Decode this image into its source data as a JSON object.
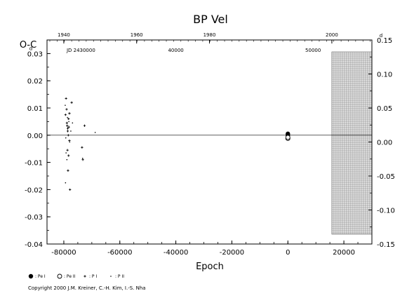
{
  "chart_data": {
    "type": "scatter",
    "title": "BP  Vel",
    "xlabel": "Epoch",
    "ylabel": "O-C",
    "xlim": [
      -86000,
      30000
    ],
    "ylim": [
      -0.04,
      0.035
    ],
    "right_ylim": [
      -0.15,
      0.15
    ],
    "x_ticks": [
      "-80000",
      "-60000",
      "-40000",
      "-20000",
      "0",
      "20000"
    ],
    "x_tick_values": [
      -80000,
      -60000,
      -40000,
      -20000,
      0,
      20000
    ],
    "y_ticks": [
      "-0.04",
      "-0.03",
      "-0.02",
      "-0.01",
      "0.00",
      "0.01",
      "0.02",
      "0.03"
    ],
    "y_tick_values": [
      -0.04,
      -0.03,
      -0.02,
      -0.01,
      0.0,
      0.01,
      0.02,
      0.03
    ],
    "right_ticks": [
      "-0.15",
      "-0.10",
      "-0.05",
      "0.00",
      "0.05",
      "0.10",
      "0.15"
    ],
    "right_tick_values": [
      -0.15,
      -0.1,
      -0.05,
      0.0,
      0.05,
      0.1,
      0.15
    ],
    "day_unit_label": "d",
    "top_year_ticks": [
      "1940",
      "1960",
      "1980",
      "2000"
    ],
    "top_year_epochs": [
      -80000,
      -54000,
      -28000,
      15700
    ],
    "top_jd_prefix": "JD 2430000",
    "top_jd_ticks": [
      "40000",
      "50000"
    ],
    "top_jd_epochs": [
      -40000,
      9000
    ],
    "shaded_region": [
      15700,
      30000
    ],
    "series": [
      {
        "name": ": Pe I",
        "marker": "filled-circle",
        "points": [
          [
            0,
            0.0005
          ],
          [
            0,
            0.0
          ]
        ]
      },
      {
        "name": ": Pe II",
        "marker": "open-circle",
        "points": [
          [
            0,
            -0.0012
          ],
          [
            0,
            -0.0008
          ]
        ]
      },
      {
        "name": ": P I",
        "marker": "plus",
        "points": [
          [
            -79200,
            0.0135
          ],
          [
            -79000,
            0.0095
          ],
          [
            -78800,
            0.0035
          ],
          [
            -78600,
            0.0025
          ],
          [
            -78900,
            0.0045
          ],
          [
            -79400,
            0.0075
          ],
          [
            -78300,
            0.006
          ],
          [
            -78200,
            0.003
          ],
          [
            -78600,
            0.0015
          ],
          [
            -78400,
            0.0
          ],
          [
            -78000,
            -0.002
          ],
          [
            -78700,
            -0.0055
          ],
          [
            -78300,
            -0.0075
          ],
          [
            -78500,
            -0.013
          ],
          [
            -77800,
            -0.02
          ],
          [
            -77200,
            0.012
          ],
          [
            -73500,
            -0.0045
          ],
          [
            -73200,
            -0.009
          ],
          [
            -72600,
            0.0035
          ],
          [
            -78000,
            0.008
          ]
        ]
      },
      {
        "name": ": P II",
        "marker": "dot",
        "points": [
          [
            -79500,
            0.011
          ],
          [
            -78700,
            0.0065
          ],
          [
            -79300,
            -0.001
          ],
          [
            -77900,
            -0.0025
          ],
          [
            -79200,
            -0.0065
          ],
          [
            -78900,
            -0.009
          ],
          [
            -79400,
            -0.0175
          ],
          [
            -77500,
            0.0015
          ],
          [
            -73300,
            -0.0085
          ],
          [
            -68800,
            0.001
          ],
          [
            -76900,
            0.0045
          ],
          [
            -78200,
            0.005
          ]
        ]
      }
    ]
  },
  "copyright": "Copyright 2000 J.M. Kreiner, C.-H. Kim, I.-S. Nha"
}
